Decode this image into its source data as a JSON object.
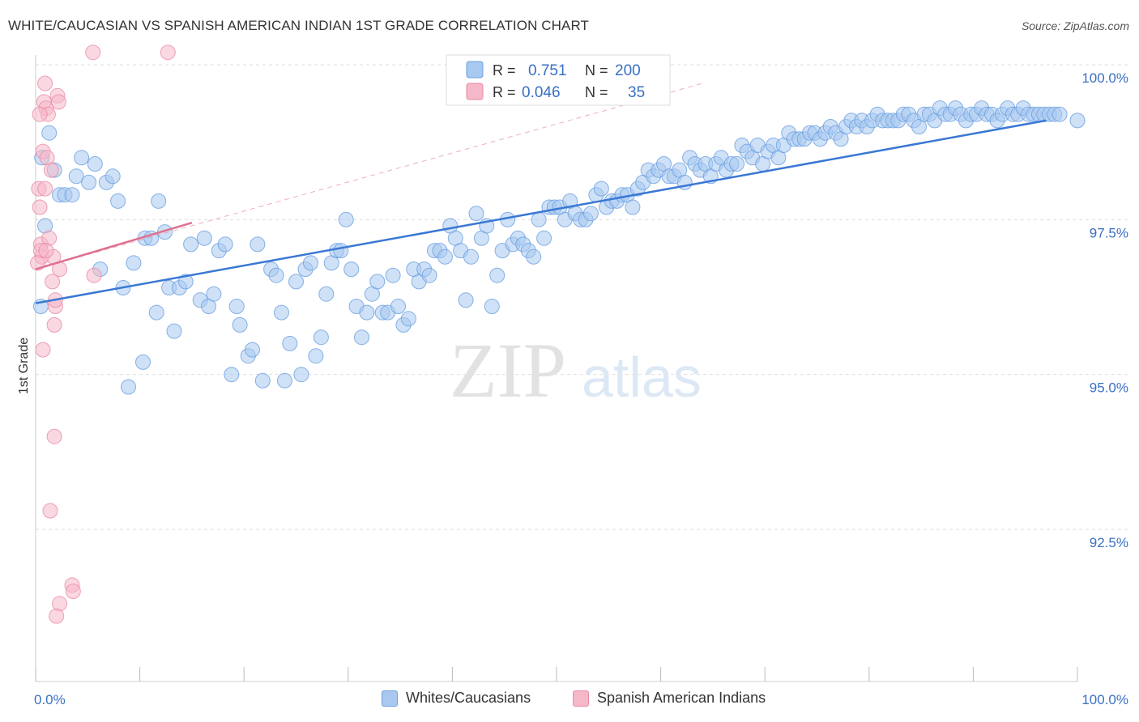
{
  "header": {
    "title": "WHITE/CAUCASIAN VS SPANISH AMERICAN INDIAN 1ST GRADE CORRELATION CHART",
    "source": "Source: ZipAtlas.com"
  },
  "watermark": {
    "zip": "ZIP",
    "atlas": "atlas"
  },
  "stats_legend": [
    {
      "r_label": "R =",
      "r_value": "0.751",
      "n_label": "N =",
      "n_value": "200",
      "color": "#a8c8f0",
      "border": "#6a9fe0",
      "text_color": "#3a6fc4"
    },
    {
      "r_label": "R =",
      "r_value": "0.046",
      "n_label": "N =",
      "n_value": "35",
      "color": "#f5b8c8",
      "border": "#e88aa5",
      "text_color": "#3a6fc4"
    }
  ],
  "chart_data": {
    "type": "scatter",
    "title": "WHITE/CAUCASIAN VS SPANISH AMERICAN INDIAN 1ST GRADE CORRELATION CHART",
    "xlabel": "",
    "ylabel": "1st Grade",
    "xlim": [
      0,
      100
    ],
    "ylim": [
      90.3,
      100.5
    ],
    "x_tick_labels": [
      "0.0%",
      "100.0%"
    ],
    "y_ticks": [
      100.0,
      97.5,
      95.0,
      92.5
    ],
    "y_tick_labels": [
      "100.0%",
      "97.5%",
      "95.0%",
      "92.5%"
    ],
    "grid": true,
    "legend_position": "bottom",
    "series": [
      {
        "name": "Whites/Caucasians",
        "color": "#6a9fe0",
        "fill": "#a8c8f0",
        "trend": {
          "x": [
            0,
            97
          ],
          "y": [
            96.15,
            99.1
          ]
        },
        "points": [
          [
            0.5,
            96.1
          ],
          [
            0.6,
            98.5
          ],
          [
            0.9,
            97.4
          ],
          [
            1.3,
            98.9
          ],
          [
            1.8,
            98.3
          ],
          [
            2.3,
            97.9
          ],
          [
            2.8,
            97.9
          ],
          [
            3.5,
            97.9
          ],
          [
            3.9,
            98.2
          ],
          [
            4.4,
            98.5
          ],
          [
            5.1,
            98.1
          ],
          [
            5.7,
            98.4
          ],
          [
            6.2,
            96.7
          ],
          [
            6.8,
            98.1
          ],
          [
            7.4,
            98.2
          ],
          [
            7.9,
            97.8
          ],
          [
            8.4,
            96.4
          ],
          [
            8.9,
            94.8
          ],
          [
            9.4,
            96.8
          ],
          [
            10.5,
            97.2
          ],
          [
            10.3,
            95.2
          ],
          [
            11.1,
            97.2
          ],
          [
            11.6,
            96.0
          ],
          [
            11.8,
            97.8
          ],
          [
            12.4,
            97.3
          ],
          [
            12.8,
            96.4
          ],
          [
            13.3,
            95.7
          ],
          [
            13.8,
            96.4
          ],
          [
            14.4,
            96.5
          ],
          [
            14.9,
            97.1
          ],
          [
            15.8,
            96.2
          ],
          [
            16.2,
            97.2
          ],
          [
            16.6,
            96.1
          ],
          [
            17.1,
            96.3
          ],
          [
            17.6,
            97.0
          ],
          [
            18.2,
            97.1
          ],
          [
            18.8,
            95.0
          ],
          [
            19.3,
            96.1
          ],
          [
            19.6,
            95.8
          ],
          [
            20.4,
            95.3
          ],
          [
            20.8,
            95.4
          ],
          [
            21.3,
            97.1
          ],
          [
            21.8,
            94.9
          ],
          [
            22.6,
            96.7
          ],
          [
            23.1,
            96.6
          ],
          [
            23.6,
            96.0
          ],
          [
            23.9,
            94.9
          ],
          [
            24.4,
            95.5
          ],
          [
            25.0,
            96.5
          ],
          [
            25.5,
            95.0
          ],
          [
            25.9,
            96.7
          ],
          [
            26.4,
            96.8
          ],
          [
            26.9,
            95.3
          ],
          [
            27.4,
            95.6
          ],
          [
            27.9,
            96.3
          ],
          [
            28.4,
            96.8
          ],
          [
            28.9,
            97.0
          ],
          [
            29.3,
            97.0
          ],
          [
            29.8,
            97.5
          ],
          [
            30.3,
            96.7
          ],
          [
            30.8,
            96.1
          ],
          [
            31.3,
            95.6
          ],
          [
            31.8,
            96.0
          ],
          [
            32.3,
            96.3
          ],
          [
            32.8,
            96.5
          ],
          [
            33.3,
            96.0
          ],
          [
            33.8,
            96.0
          ],
          [
            34.3,
            96.6
          ],
          [
            34.8,
            96.1
          ],
          [
            35.3,
            95.8
          ],
          [
            35.8,
            95.9
          ],
          [
            36.3,
            96.7
          ],
          [
            36.8,
            96.5
          ],
          [
            37.3,
            96.7
          ],
          [
            37.8,
            96.6
          ],
          [
            38.3,
            97.0
          ],
          [
            38.8,
            97.0
          ],
          [
            39.3,
            96.9
          ],
          [
            39.8,
            97.4
          ],
          [
            40.3,
            97.2
          ],
          [
            40.8,
            97.0
          ],
          [
            41.3,
            96.2
          ],
          [
            41.8,
            96.9
          ],
          [
            42.3,
            97.6
          ],
          [
            42.8,
            97.2
          ],
          [
            43.3,
            97.4
          ],
          [
            43.8,
            96.1
          ],
          [
            44.3,
            96.6
          ],
          [
            44.8,
            97.0
          ],
          [
            45.3,
            97.5
          ],
          [
            45.8,
            97.1
          ],
          [
            46.3,
            97.2
          ],
          [
            46.8,
            97.1
          ],
          [
            47.3,
            97.0
          ],
          [
            47.8,
            96.9
          ],
          [
            48.3,
            97.5
          ],
          [
            48.8,
            97.2
          ],
          [
            49.3,
            97.7
          ],
          [
            49.8,
            97.7
          ],
          [
            50.3,
            97.7
          ],
          [
            50.8,
            97.5
          ],
          [
            51.3,
            97.8
          ],
          [
            51.8,
            97.6
          ],
          [
            52.3,
            97.5
          ],
          [
            52.8,
            97.5
          ],
          [
            53.3,
            97.6
          ],
          [
            53.8,
            97.9
          ],
          [
            54.3,
            98.0
          ],
          [
            54.8,
            97.7
          ],
          [
            55.3,
            97.8
          ],
          [
            55.8,
            97.8
          ],
          [
            56.3,
            97.9
          ],
          [
            56.8,
            97.9
          ],
          [
            57.3,
            97.7
          ],
          [
            57.8,
            98.0
          ],
          [
            58.3,
            98.1
          ],
          [
            58.8,
            98.3
          ],
          [
            59.3,
            98.2
          ],
          [
            59.8,
            98.3
          ],
          [
            60.3,
            98.4
          ],
          [
            60.8,
            98.2
          ],
          [
            61.3,
            98.2
          ],
          [
            61.8,
            98.3
          ],
          [
            62.3,
            98.1
          ],
          [
            62.8,
            98.5
          ],
          [
            63.3,
            98.4
          ],
          [
            63.8,
            98.3
          ],
          [
            64.3,
            98.4
          ],
          [
            64.8,
            98.2
          ],
          [
            65.3,
            98.4
          ],
          [
            65.8,
            98.5
          ],
          [
            66.3,
            98.3
          ],
          [
            66.8,
            98.4
          ],
          [
            67.3,
            98.4
          ],
          [
            67.8,
            98.7
          ],
          [
            68.3,
            98.6
          ],
          [
            68.8,
            98.5
          ],
          [
            69.3,
            98.7
          ],
          [
            69.8,
            98.4
          ],
          [
            70.3,
            98.6
          ],
          [
            70.8,
            98.7
          ],
          [
            71.3,
            98.5
          ],
          [
            71.8,
            98.7
          ],
          [
            72.3,
            98.9
          ],
          [
            72.8,
            98.8
          ],
          [
            73.3,
            98.8
          ],
          [
            73.8,
            98.8
          ],
          [
            74.3,
            98.9
          ],
          [
            74.8,
            98.9
          ],
          [
            75.3,
            98.8
          ],
          [
            75.8,
            98.9
          ],
          [
            76.3,
            99.0
          ],
          [
            76.8,
            98.9
          ],
          [
            77.3,
            98.8
          ],
          [
            77.8,
            99.0
          ],
          [
            78.3,
            99.1
          ],
          [
            78.8,
            99.0
          ],
          [
            79.3,
            99.1
          ],
          [
            79.8,
            99.0
          ],
          [
            80.3,
            99.1
          ],
          [
            80.8,
            99.2
          ],
          [
            81.3,
            99.1
          ],
          [
            81.8,
            99.1
          ],
          [
            82.3,
            99.1
          ],
          [
            82.8,
            99.1
          ],
          [
            83.3,
            99.2
          ],
          [
            83.8,
            99.2
          ],
          [
            84.3,
            99.1
          ],
          [
            84.8,
            99.0
          ],
          [
            85.3,
            99.2
          ],
          [
            85.8,
            99.2
          ],
          [
            86.3,
            99.1
          ],
          [
            86.8,
            99.3
          ],
          [
            87.3,
            99.2
          ],
          [
            87.8,
            99.2
          ],
          [
            88.3,
            99.3
          ],
          [
            88.8,
            99.2
          ],
          [
            89.3,
            99.1
          ],
          [
            89.8,
            99.2
          ],
          [
            90.3,
            99.2
          ],
          [
            90.8,
            99.3
          ],
          [
            91.3,
            99.2
          ],
          [
            91.8,
            99.2
          ],
          [
            92.3,
            99.1
          ],
          [
            92.8,
            99.2
          ],
          [
            93.3,
            99.3
          ],
          [
            93.8,
            99.2
          ],
          [
            94.3,
            99.2
          ],
          [
            94.8,
            99.3
          ],
          [
            95.3,
            99.2
          ],
          [
            95.8,
            99.2
          ],
          [
            96.3,
            99.2
          ],
          [
            96.8,
            99.2
          ],
          [
            97.3,
            99.2
          ],
          [
            97.8,
            99.2
          ],
          [
            98.3,
            99.2
          ],
          [
            100.0,
            99.1
          ]
        ]
      },
      {
        "name": "Spanish American Indians",
        "color": "#e88aa5",
        "fill": "#f5b8c8",
        "trend": {
          "x": [
            0,
            15
          ],
          "y": [
            96.7,
            97.45
          ]
        },
        "trend_extended": {
          "x": [
            0,
            64
          ],
          "y": [
            96.7,
            99.7
          ]
        },
        "points": [
          [
            0.3,
            98.0
          ],
          [
            0.4,
            97.7
          ],
          [
            0.5,
            97.1
          ],
          [
            0.6,
            96.9
          ],
          [
            0.7,
            98.6
          ],
          [
            0.8,
            99.4
          ],
          [
            0.9,
            99.7
          ],
          [
            1.0,
            99.3
          ],
          [
            1.1,
            98.5
          ],
          [
            1.2,
            99.2
          ],
          [
            1.3,
            97.2
          ],
          [
            1.5,
            98.3
          ],
          [
            1.7,
            96.9
          ],
          [
            1.9,
            96.1
          ],
          [
            2.1,
            99.5
          ],
          [
            2.3,
            96.7
          ],
          [
            0.7,
            95.4
          ],
          [
            1.8,
            95.8
          ],
          [
            1.8,
            94.0
          ],
          [
            1.4,
            92.8
          ],
          [
            3.5,
            91.6
          ],
          [
            3.6,
            91.5
          ],
          [
            2.3,
            91.3
          ],
          [
            2.0,
            91.1
          ],
          [
            5.6,
            96.6
          ],
          [
            12.7,
            100.2
          ],
          [
            5.5,
            100.2
          ],
          [
            0.5,
            97.0
          ],
          [
            1.0,
            97.0
          ],
          [
            0.2,
            96.8
          ],
          [
            0.9,
            98.0
          ],
          [
            1.6,
            96.5
          ],
          [
            1.9,
            96.2
          ],
          [
            0.4,
            99.2
          ],
          [
            2.2,
            99.4
          ]
        ]
      }
    ]
  },
  "bottom_legend": [
    {
      "label": "Whites/Caucasians",
      "color": "#a8c8f0",
      "border": "#6a9fe0"
    },
    {
      "label": "Spanish American Indians",
      "color": "#f5b8c8",
      "border": "#e88aa5"
    }
  ]
}
